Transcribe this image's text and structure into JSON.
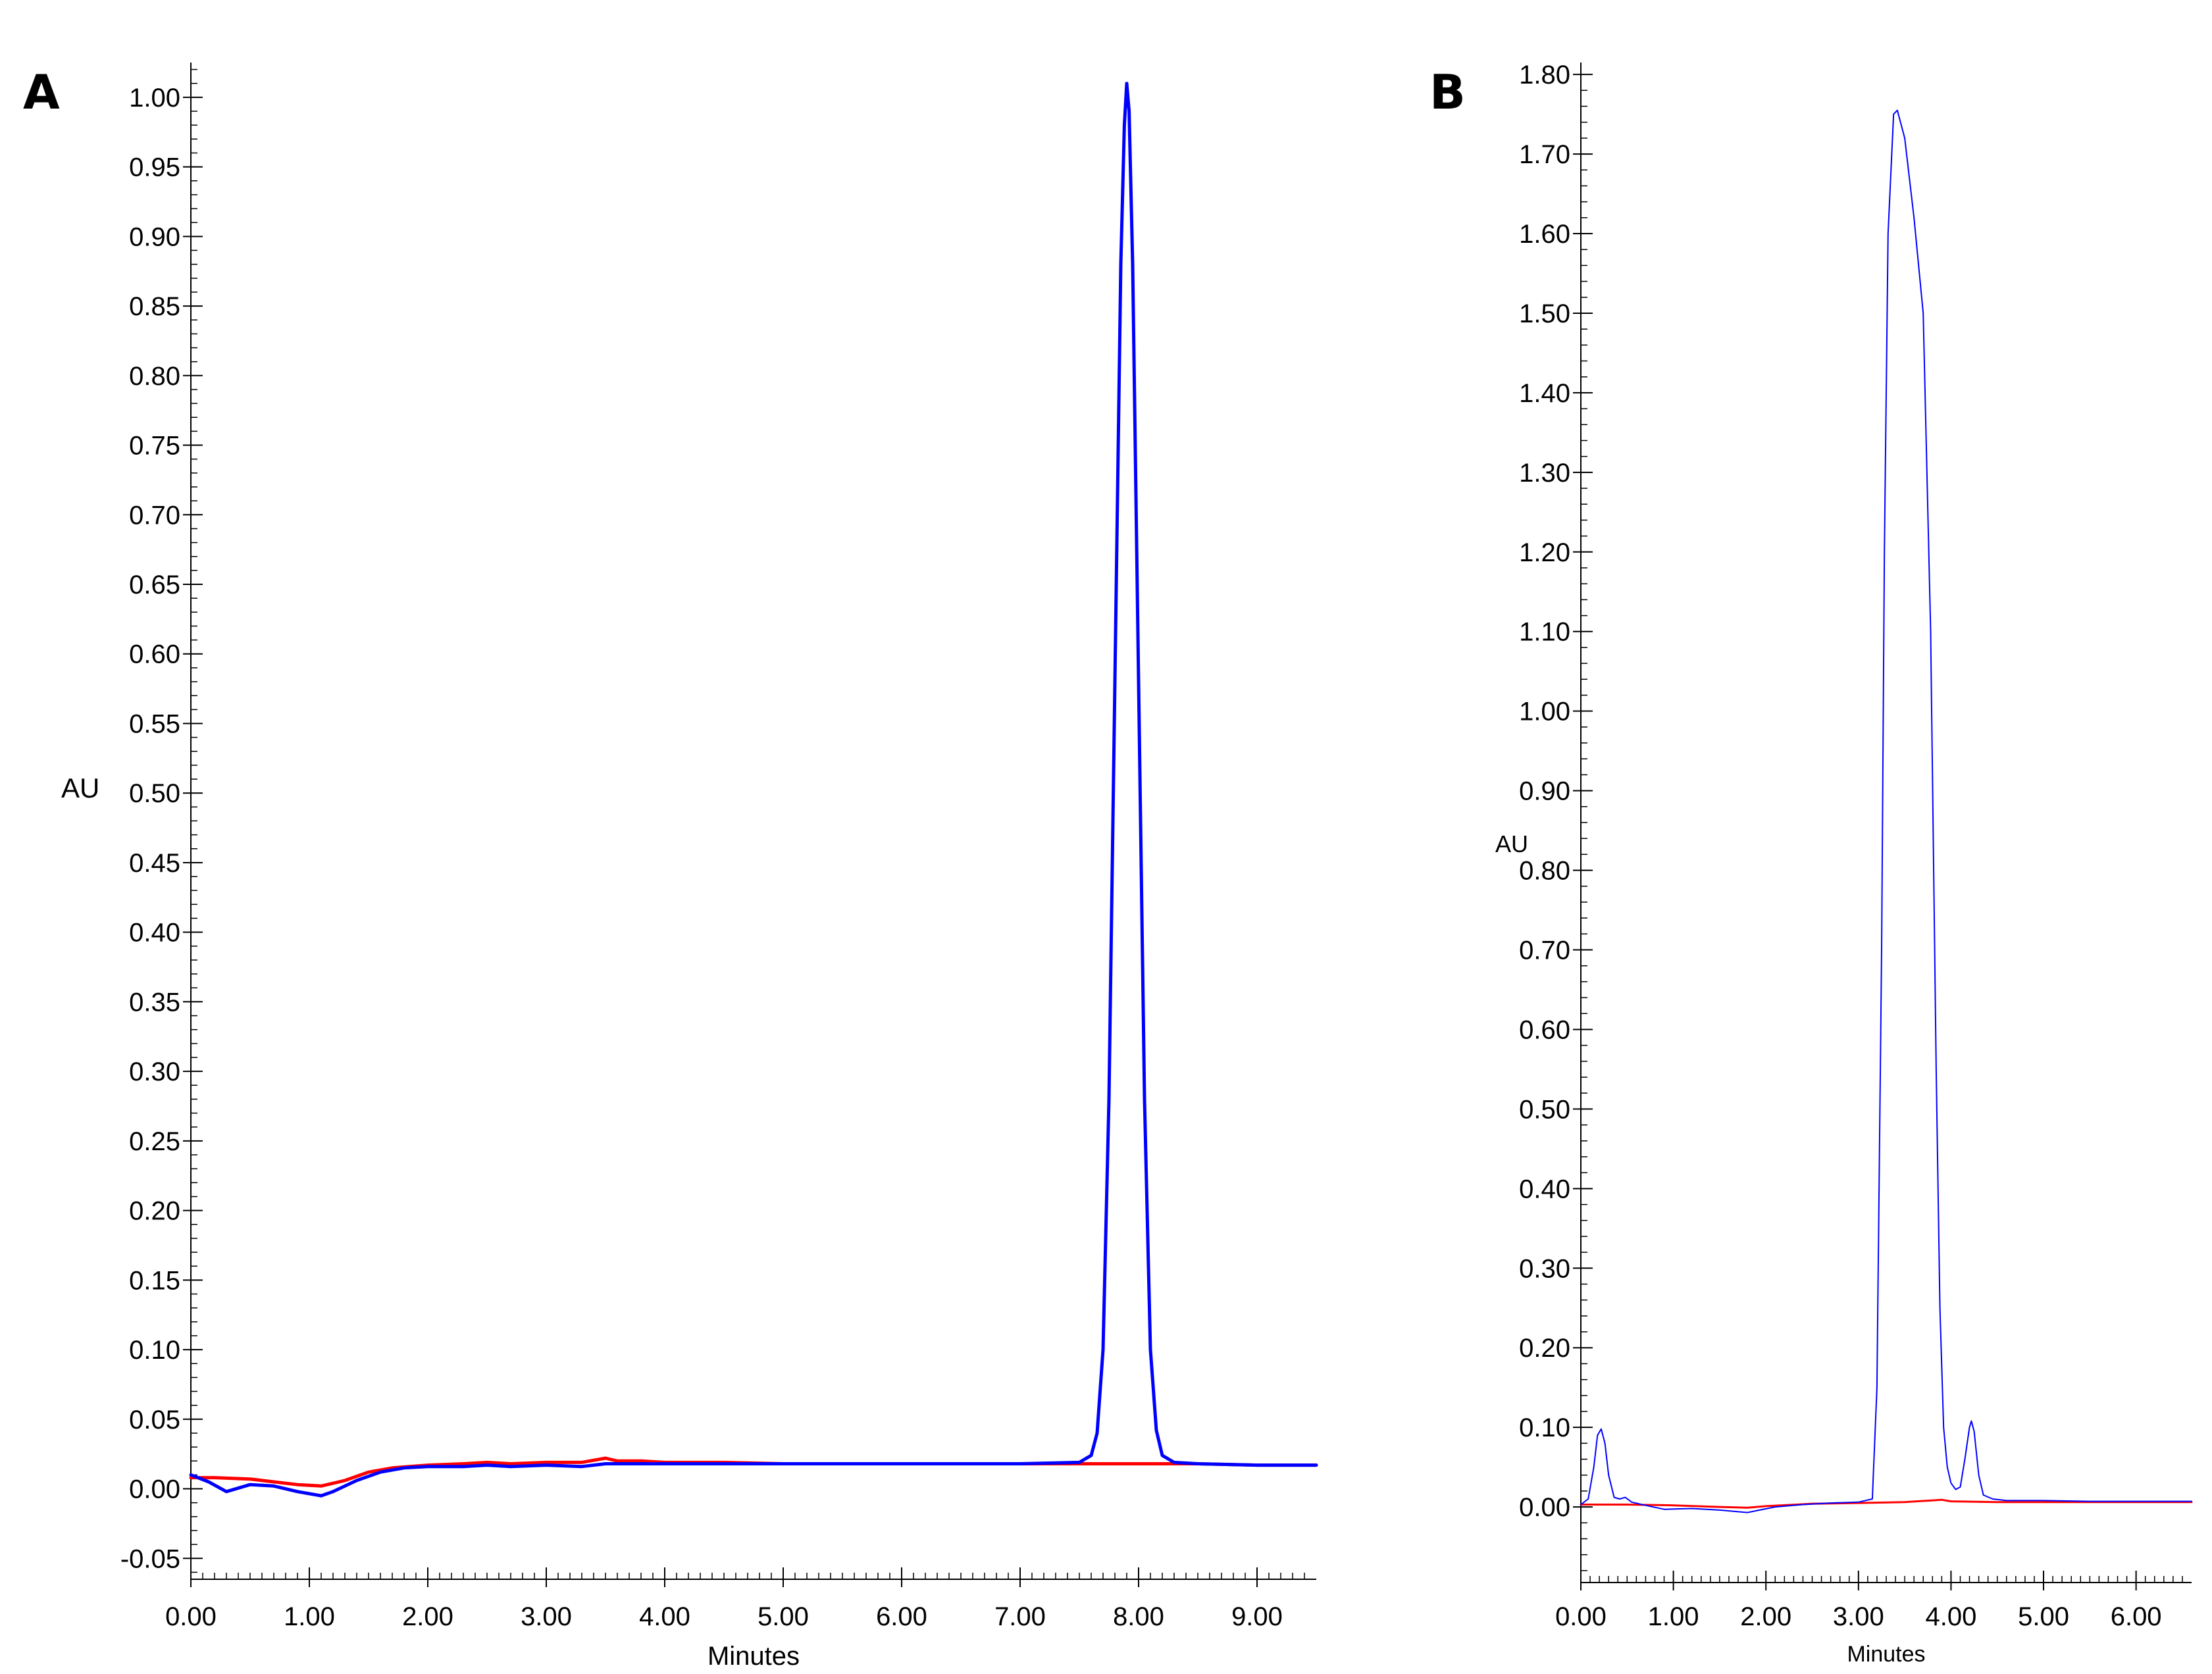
{
  "chart_data": [
    {
      "type": "line",
      "panel_label": "A",
      "xlabel": "Minutes",
      "ylabel": "AU",
      "xlim": [
        0,
        9.5
      ],
      "ylim": [
        -0.065,
        1.025
      ],
      "x_ticks": [
        0,
        1,
        2,
        3,
        4,
        5,
        6,
        7,
        8,
        9
      ],
      "x_tick_labels": [
        "0.00",
        "1.00",
        "2.00",
        "3.00",
        "4.00",
        "5.00",
        "6.00",
        "7.00",
        "8.00",
        "9.00"
      ],
      "y_ticks": [
        -0.05,
        0,
        0.05,
        0.1,
        0.15,
        0.2,
        0.25,
        0.3,
        0.35,
        0.4,
        0.45,
        0.5,
        0.55,
        0.6,
        0.65,
        0.7,
        0.75,
        0.8,
        0.85,
        0.9,
        0.95,
        1.0
      ],
      "y_tick_labels": [
        "-0.05",
        "0.00",
        "0.05",
        "0.10",
        "0.15",
        "0.20",
        "0.25",
        "0.30",
        "0.35",
        "0.40",
        "0.45",
        "0.50",
        "0.55",
        "0.60",
        "0.65",
        "0.70",
        "0.75",
        "0.80",
        "0.85",
        "0.90",
        "0.95",
        "1.00"
      ],
      "grid": false,
      "legend": "none",
      "series": [
        {
          "color": "#ff0000",
          "x": [
            0,
            0.2,
            0.5,
            0.7,
            0.9,
            1.1,
            1.3,
            1.5,
            1.7,
            2.0,
            2.3,
            2.5,
            2.7,
            3.0,
            3.3,
            3.5,
            3.6,
            3.8,
            4.0,
            4.5,
            5.0,
            5.5,
            6.0,
            6.5,
            7.0,
            7.5,
            8.0,
            8.5,
            9.0,
            9.5
          ],
          "y": [
            0.008,
            0.008,
            0.007,
            0.005,
            0.003,
            0.002,
            0.006,
            0.012,
            0.015,
            0.017,
            0.018,
            0.019,
            0.018,
            0.019,
            0.019,
            0.022,
            0.02,
            0.02,
            0.019,
            0.019,
            0.018,
            0.018,
            0.018,
            0.018,
            0.018,
            0.018,
            0.018,
            0.018,
            0.017,
            0.017
          ]
        },
        {
          "color": "#0000ff",
          "x": [
            0,
            0.15,
            0.3,
            0.5,
            0.7,
            0.9,
            1.1,
            1.2,
            1.4,
            1.6,
            1.8,
            2.0,
            2.3,
            2.5,
            2.7,
            3.0,
            3.3,
            3.5,
            3.7,
            4.0,
            4.5,
            5.0,
            5.5,
            6.0,
            6.5,
            7.0,
            7.5,
            7.6,
            7.65,
            7.7,
            7.75,
            7.8,
            7.85,
            7.88,
            7.9,
            7.92,
            7.95,
            8.0,
            8.05,
            8.1,
            8.15,
            8.2,
            8.3,
            8.5,
            9.0,
            9.5
          ],
          "y": [
            0.01,
            0.005,
            -0.002,
            0.003,
            0.002,
            -0.002,
            -0.005,
            -0.002,
            0.006,
            0.012,
            0.015,
            0.016,
            0.016,
            0.017,
            0.016,
            0.017,
            0.016,
            0.018,
            0.018,
            0.018,
            0.018,
            0.018,
            0.018,
            0.018,
            0.018,
            0.018,
            0.019,
            0.024,
            0.04,
            0.1,
            0.28,
            0.58,
            0.88,
            0.98,
            1.01,
            0.99,
            0.88,
            0.58,
            0.28,
            0.1,
            0.042,
            0.024,
            0.019,
            0.018,
            0.017,
            0.017
          ]
        }
      ]
    },
    {
      "type": "line",
      "panel_label": "B",
      "xlabel": "Minutes",
      "ylabel": "AU",
      "xlim": [
        0,
        6.6
      ],
      "ylim": [
        -0.095,
        1.815
      ],
      "x_ticks": [
        0,
        1,
        2,
        3,
        4,
        5,
        6
      ],
      "x_tick_labels": [
        "0.00",
        "1.00",
        "2.00",
        "3.00",
        "4.00",
        "5.00",
        "6.00"
      ],
      "y_ticks": [
        0,
        0.1,
        0.2,
        0.3,
        0.4,
        0.5,
        0.6,
        0.7,
        0.8,
        0.9,
        1.0,
        1.1,
        1.2,
        1.3,
        1.4,
        1.5,
        1.6,
        1.7,
        1.8
      ],
      "y_tick_labels": [
        "0.00",
        "0.10",
        "0.20",
        "0.30",
        "0.40",
        "0.50",
        "0.60",
        "0.70",
        "0.80",
        "0.90",
        "1.00",
        "1.10",
        "1.20",
        "1.30",
        "1.40",
        "1.50",
        "1.60",
        "1.70",
        "1.80"
      ],
      "grid": false,
      "legend": "none",
      "series": [
        {
          "color": "#ff0000",
          "x": [
            0,
            0.5,
            1.0,
            1.5,
            1.8,
            2.0,
            2.5,
            3.0,
            3.5,
            3.9,
            4.0,
            4.5,
            5.0,
            5.5,
            6.0,
            6.6
          ],
          "y": [
            0.003,
            0.003,
            0.002,
            0.0,
            -0.001,
            0.001,
            0.004,
            0.005,
            0.006,
            0.009,
            0.007,
            0.006,
            0.006,
            0.006,
            0.006,
            0.006
          ],
          "width": 3
        },
        {
          "color": "#0000ff",
          "x": [
            0,
            0.08,
            0.14,
            0.18,
            0.22,
            0.26,
            0.3,
            0.36,
            0.42,
            0.48,
            0.55,
            0.7,
            0.9,
            1.2,
            1.5,
            1.8,
            2.1,
            2.4,
            2.7,
            3.0,
            3.15,
            3.2,
            3.25,
            3.28,
            3.32,
            3.38,
            3.42,
            3.5,
            3.6,
            3.7,
            3.78,
            3.84,
            3.88,
            3.92,
            3.96,
            4.0,
            4.05,
            4.1,
            4.15,
            4.2,
            4.22,
            4.25,
            4.3,
            4.35,
            4.45,
            4.6,
            5.0,
            5.5,
            6.0,
            6.6
          ],
          "y": [
            0.003,
            0.01,
            0.05,
            0.09,
            0.098,
            0.08,
            0.04,
            0.012,
            0.01,
            0.012,
            0.006,
            0.002,
            -0.003,
            -0.002,
            -0.004,
            -0.007,
            0.0,
            0.003,
            0.005,
            0.006,
            0.01,
            0.15,
            0.7,
            1.2,
            1.6,
            1.75,
            1.755,
            1.72,
            1.62,
            1.5,
            1.1,
            0.55,
            0.25,
            0.1,
            0.05,
            0.03,
            0.022,
            0.025,
            0.06,
            0.1,
            0.108,
            0.095,
            0.04,
            0.015,
            0.01,
            0.008,
            0.008,
            0.007,
            0.007,
            0.007
          ],
          "width": 2
        }
      ]
    }
  ]
}
